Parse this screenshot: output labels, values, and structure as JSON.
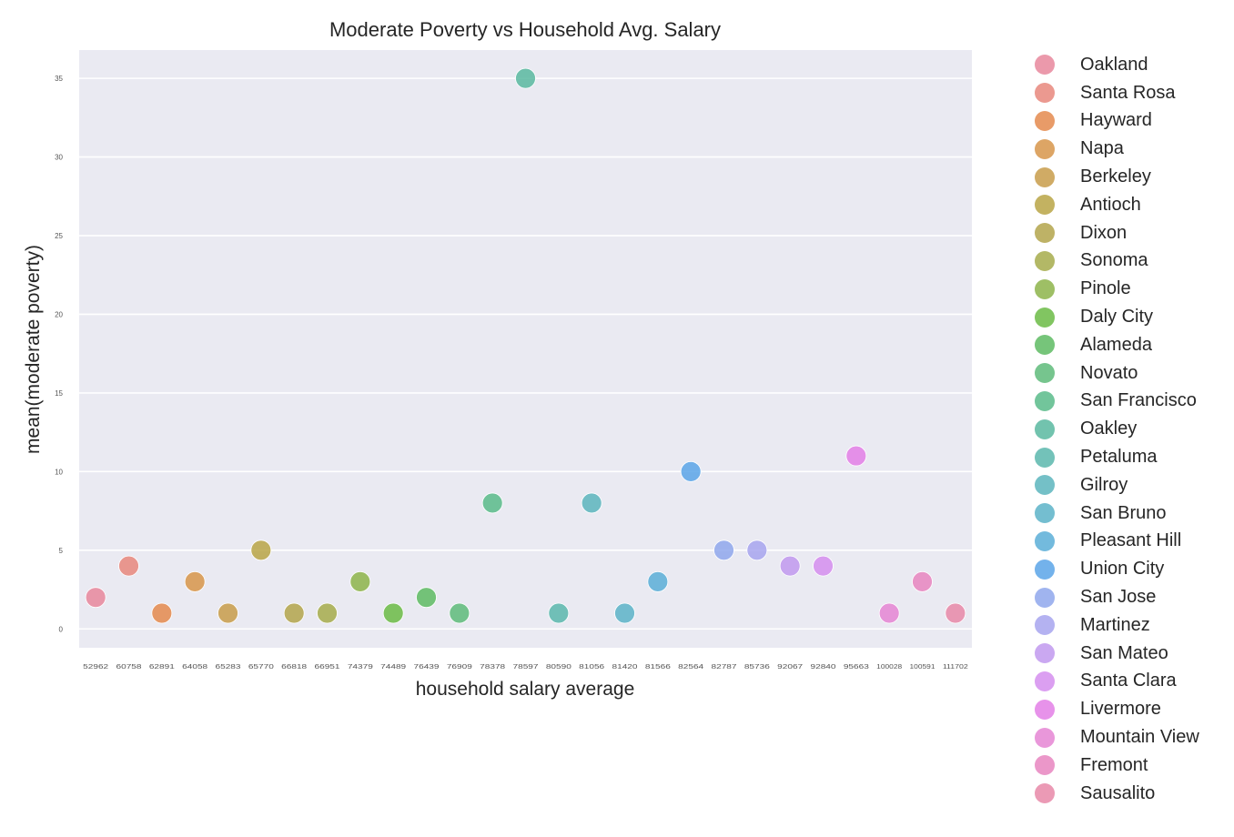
{
  "chart_data": {
    "type": "scatter",
    "title": "Moderate Poverty vs Household Avg. Salary",
    "xlabel": "household salary average",
    "ylabel": "mean(moderate poverty)",
    "ylim": [
      -1.2,
      36.8
    ],
    "yticks": [
      0,
      5,
      10,
      15,
      20,
      25,
      30,
      35
    ],
    "grid": true,
    "legend_position": "outside-right",
    "x": [
      "52962",
      "60758",
      "62891",
      "64058",
      "65283",
      "65770",
      "66818",
      "66951",
      "74379",
      "74489",
      "76439",
      "76909",
      "78378",
      "78597",
      "80590",
      "81056",
      "81420",
      "81566",
      "82564",
      "82787",
      "85736",
      "92067",
      "92840",
      "95663",
      "100028",
      "100591",
      "111702"
    ],
    "points": [
      {
        "x": "52962",
        "y": 2,
        "color": "#e8879c"
      },
      {
        "x": "60758",
        "y": 4,
        "color": "#e8877d"
      },
      {
        "x": "62891",
        "y": 1,
        "color": "#e48a4e"
      },
      {
        "x": "64058",
        "y": 3,
        "color": "#d7954a"
      },
      {
        "x": "65283",
        "y": 1,
        "color": "#c89c4a"
      },
      {
        "x": "65770",
        "y": 5,
        "color": "#b9a445"
      },
      {
        "x": "66818",
        "y": 1,
        "color": "#b3a54b"
      },
      {
        "x": "66951",
        "y": 1,
        "color": "#a6ab4b"
      },
      {
        "x": "74379",
        "y": 3,
        "color": "#8db44a"
      },
      {
        "x": "74489",
        "y": 1,
        "color": "#6bbb45"
      },
      {
        "x": "76439",
        "y": 2,
        "color": "#5ebb63"
      },
      {
        "x": "76909",
        "y": 1,
        "color": "#5ebb7a"
      },
      {
        "x": "78378",
        "y": 8,
        "color": "#59bb8a"
      },
      {
        "x": "78597",
        "y": 35,
        "color": "#59b9a0"
      },
      {
        "x": "80590",
        "y": 1,
        "color": "#5ab7ad"
      },
      {
        "x": "81056",
        "y": 8,
        "color": "#5cb5bd"
      },
      {
        "x": "81420",
        "y": 1,
        "color": "#5cb3c8"
      },
      {
        "x": "81566",
        "y": 3,
        "color": "#5aaed7"
      },
      {
        "x": "82564",
        "y": 10,
        "color": "#5aa5e8"
      },
      {
        "x": "82787",
        "y": 5,
        "color": "#8fa7ec"
      },
      {
        "x": "85736",
        "y": 5,
        "color": "#a7a4ee"
      },
      {
        "x": "92067",
        "y": 4,
        "color": "#c199ee"
      },
      {
        "x": "92840",
        "y": 4,
        "color": "#d58eee"
      },
      {
        "x": "95663",
        "y": 11,
        "color": "#e37fe6"
      },
      {
        "x": "100028",
        "y": 1,
        "color": "#e585d3"
      },
      {
        "x": "100591",
        "y": 3,
        "color": "#e885c0"
      },
      {
        "x": "111702",
        "y": 1,
        "color": "#e888a8"
      }
    ]
  },
  "legend": {
    "items": [
      {
        "label": "Oakland",
        "color": "#e8879c"
      },
      {
        "label": "Santa Rosa",
        "color": "#e8877d"
      },
      {
        "label": "Hayward",
        "color": "#e48a4e"
      },
      {
        "label": "Napa",
        "color": "#d7954a"
      },
      {
        "label": "Berkeley",
        "color": "#c89c4a"
      },
      {
        "label": "Antioch",
        "color": "#b9a445"
      },
      {
        "label": "Dixon",
        "color": "#b3a54b"
      },
      {
        "label": "Sonoma",
        "color": "#a6ab4b"
      },
      {
        "label": "Pinole",
        "color": "#8db44a"
      },
      {
        "label": "Daly City",
        "color": "#6bbb45"
      },
      {
        "label": "Alameda",
        "color": "#5ebb63"
      },
      {
        "label": "Novato",
        "color": "#5ebb7a"
      },
      {
        "label": "San Francisco",
        "color": "#59bb8a"
      },
      {
        "label": "Oakley",
        "color": "#59b9a0"
      },
      {
        "label": "Petaluma",
        "color": "#5ab7ad"
      },
      {
        "label": "Gilroy",
        "color": "#5cb5bd"
      },
      {
        "label": "San Bruno",
        "color": "#5cb3c8"
      },
      {
        "label": "Pleasant Hill",
        "color": "#5aaed7"
      },
      {
        "label": "Union City",
        "color": "#5aa5e8"
      },
      {
        "label": "San Jose",
        "color": "#8fa7ec"
      },
      {
        "label": "Martinez",
        "color": "#a7a4ee"
      },
      {
        "label": "San Mateo",
        "color": "#c199ee"
      },
      {
        "label": "Santa Clara",
        "color": "#d58eee"
      },
      {
        "label": "Livermore",
        "color": "#e37fe6"
      },
      {
        "label": "Mountain View",
        "color": "#e585d3"
      },
      {
        "label": "Fremont",
        "color": "#e885c0"
      },
      {
        "label": "Sausalito",
        "color": "#e888a8"
      }
    ]
  },
  "colors": {
    "plot_background": "#eaeaf2",
    "grid": "#ffffff",
    "text": "#262626"
  }
}
